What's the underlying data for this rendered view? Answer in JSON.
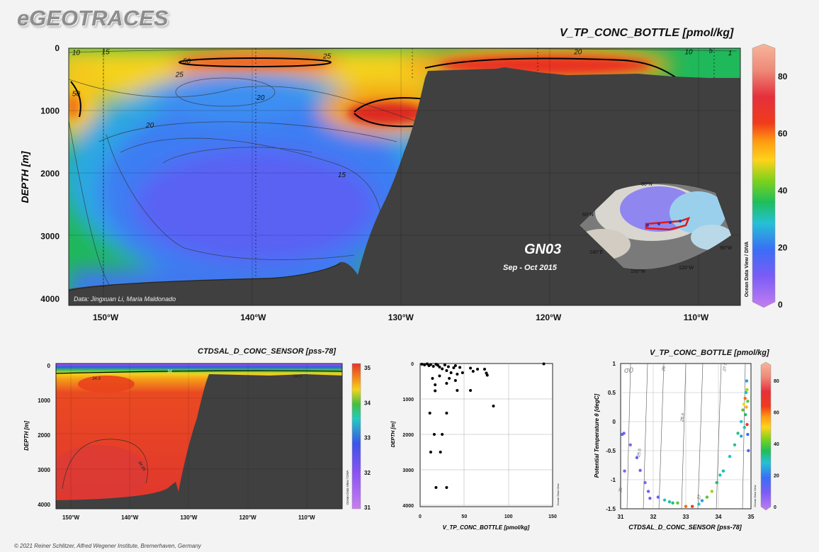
{
  "header": {
    "brand": "eGEOTRACES",
    "footer": "© 2021 Reiner Schlitzer, Alfred Wegener Institute, Bremerhaven, Germany"
  },
  "chart_data": [
    {
      "type": "heatmap",
      "title": "V_TP_CONC_BOTTLE [pmol/kg]",
      "ylabel": "DEPTH [m]",
      "xlabel": "",
      "x_ticks": [
        "150°W",
        "140°W",
        "130°W",
        "120°W",
        "110°W"
      ],
      "y_ticks": [
        "0",
        "1000",
        "2000",
        "3000",
        "4000"
      ],
      "xlim": [
        -152.5,
        -107
      ],
      "ylim": [
        4100,
        0
      ],
      "colorbar": {
        "min": 0,
        "max": 90,
        "ticks": [
          "0",
          "20",
          "40",
          "60",
          "80"
        ]
      },
      "contour_labels": [
        {
          "text": "10",
          "x": -152,
          "y": 60
        },
        {
          "text": "15",
          "x": -150,
          "y": 50
        },
        {
          "text": "50",
          "x": -144.5,
          "y": 200
        },
        {
          "text": "25",
          "x": -135,
          "y": 120
        },
        {
          "text": "20",
          "x": -118,
          "y": 50
        },
        {
          "text": "10",
          "x": -110.5,
          "y": 50
        },
        {
          "text": "5",
          "x": -109,
          "y": 30
        },
        {
          "text": "1",
          "x": -107.7,
          "y": 70
        },
        {
          "text": "25",
          "x": -145,
          "y": 410
        },
        {
          "text": "50",
          "x": -152,
          "y": 720
        },
        {
          "text": "20",
          "x": -139.5,
          "y": 780
        },
        {
          "text": "20",
          "x": -147,
          "y": 1220
        },
        {
          "text": "15",
          "x": -134,
          "y": 2010
        }
      ],
      "section_label": "GN03",
      "date_label": "Sep - Oct 2015",
      "credit": "Data: Jingxuan Li, Maria Maldonado",
      "side_label": "Ocean Data View / DIVA",
      "inset_map": {
        "labels": [
          "150°W",
          "120°W",
          "60°N",
          "90°W",
          "140°E",
          "80°N"
        ]
      }
    },
    {
      "type": "heatmap",
      "title": "CTDSAL_D_CONC_SENSOR [pss-78]",
      "ylabel": "DEPTH [m]",
      "x_ticks": [
        "150°W",
        "140°W",
        "130°W",
        "120°W",
        "110°W"
      ],
      "y_ticks": [
        "0",
        "1000",
        "2000",
        "3000",
        "4000"
      ],
      "colorbar": {
        "min": 31,
        "max": 35,
        "ticks": [
          "31",
          "32",
          "33",
          "34",
          "35"
        ]
      },
      "contour_labels": [
        "34.9",
        "34",
        "34.9",
        "34.95"
      ],
      "side_label": "Ocean Data View / DIVA"
    },
    {
      "type": "scatter",
      "xlabel": "V_TP_CONC_BOTTLE [pmol/kg]",
      "ylabel": "DEPTH [m]",
      "xlim": [
        0,
        150
      ],
      "ylim": [
        4100,
        0
      ],
      "x_ticks": [
        "0",
        "50",
        "100",
        "150"
      ],
      "y_ticks": [
        "0",
        "1000",
        "2000",
        "3000",
        "4000"
      ],
      "side_label": "Ocean Data View",
      "points": [
        [
          2,
          20
        ],
        [
          5,
          40
        ],
        [
          8,
          10
        ],
        [
          10,
          60
        ],
        [
          12,
          30
        ],
        [
          15,
          80
        ],
        [
          18,
          20
        ],
        [
          20,
          50
        ],
        [
          22,
          100
        ],
        [
          25,
          150
        ],
        [
          28,
          40
        ],
        [
          30,
          200
        ],
        [
          32,
          90
        ],
        [
          35,
          260
        ],
        [
          38,
          120
        ],
        [
          40,
          60
        ],
        [
          42,
          300
        ],
        [
          45,
          110
        ],
        [
          48,
          260
        ],
        [
          14,
          420
        ],
        [
          22,
          350
        ],
        [
          33,
          420
        ],
        [
          40,
          480
        ],
        [
          57,
          130
        ],
        [
          60,
          220
        ],
        [
          65,
          160
        ],
        [
          73,
          160
        ],
        [
          75,
          270
        ],
        [
          76,
          330
        ],
        [
          17,
          600
        ],
        [
          30,
          560
        ],
        [
          17,
          770
        ],
        [
          42,
          760
        ],
        [
          57,
          760
        ],
        [
          83,
          1200
        ],
        [
          11,
          1400
        ],
        [
          30,
          1400
        ],
        [
          16,
          2000
        ],
        [
          25,
          2000
        ],
        [
          12,
          2500
        ],
        [
          23,
          2500
        ],
        [
          18,
          3500
        ],
        [
          30,
          3500
        ],
        [
          140,
          10
        ]
      ]
    },
    {
      "type": "scatter",
      "title": "V_TP_CONC_BOTTLE [pmol/kg]",
      "xlabel": "CTDSAL_D_CONC_SENSOR [pss-78]",
      "ylabel": "Potential Temperature θ [degC]",
      "xlim": [
        31,
        35
      ],
      "ylim": [
        -1.5,
        1
      ],
      "x_ticks": [
        "31",
        "32",
        "33",
        "34",
        "35"
      ],
      "y_ticks": [
        "1",
        "0.5",
        "0",
        "-0.5",
        "-1",
        "-1.5"
      ],
      "sigma_label": "σ0",
      "isopycnal_labels": [
        "25",
        "25.5",
        "26",
        "26.5",
        "27",
        "27.5"
      ],
      "colorbar": {
        "min": 0,
        "max": 90,
        "ticks": [
          "0",
          "20",
          "40",
          "60",
          "80"
        ]
      },
      "side_label": "Ocean Data View",
      "points": [
        [
          31.05,
          -0.22,
          15
        ],
        [
          31.1,
          -0.2,
          12
        ],
        [
          31.12,
          -0.85,
          10
        ],
        [
          31.3,
          -0.4,
          8
        ],
        [
          31.5,
          -0.62,
          14
        ],
        [
          31.6,
          -0.84,
          12
        ],
        [
          31.75,
          -1.05,
          10
        ],
        [
          31.85,
          -1.2,
          12
        ],
        [
          31.9,
          -1.32,
          14
        ],
        [
          32.15,
          -1.3,
          14
        ],
        [
          32.35,
          -1.35,
          30
        ],
        [
          32.5,
          -1.38,
          32
        ],
        [
          32.6,
          -1.4,
          34
        ],
        [
          32.75,
          -1.4,
          40
        ],
        [
          33.0,
          -1.46,
          60
        ],
        [
          33.2,
          -1.46,
          65
        ],
        [
          33.4,
          -1.42,
          30
        ],
        [
          33.5,
          -1.36,
          25
        ],
        [
          33.65,
          -1.3,
          40
        ],
        [
          33.8,
          -1.2,
          45
        ],
        [
          33.95,
          -1.05,
          35
        ],
        [
          34.05,
          -0.92,
          30
        ],
        [
          34.15,
          -0.85,
          32
        ],
        [
          34.35,
          -0.6,
          30
        ],
        [
          34.5,
          -0.4,
          32
        ],
        [
          34.6,
          -0.2,
          33
        ],
        [
          34.7,
          0.0,
          30
        ],
        [
          34.75,
          0.2,
          40
        ],
        [
          34.78,
          0.3,
          50
        ],
        [
          34.82,
          0.4,
          60
        ],
        [
          34.85,
          0.5,
          30
        ],
        [
          34.87,
          0.7,
          25
        ],
        [
          34.88,
          0.55,
          45
        ],
        [
          34.86,
          0.25,
          55
        ],
        [
          34.9,
          -0.22,
          20
        ],
        [
          34.92,
          -0.5,
          20
        ],
        [
          34.88,
          -0.05,
          65
        ],
        [
          34.8,
          -0.1,
          30
        ],
        [
          34.7,
          -0.25,
          25
        ],
        [
          34.83,
          0.12,
          35
        ],
        [
          34.9,
          0.35,
          40
        ]
      ]
    }
  ]
}
